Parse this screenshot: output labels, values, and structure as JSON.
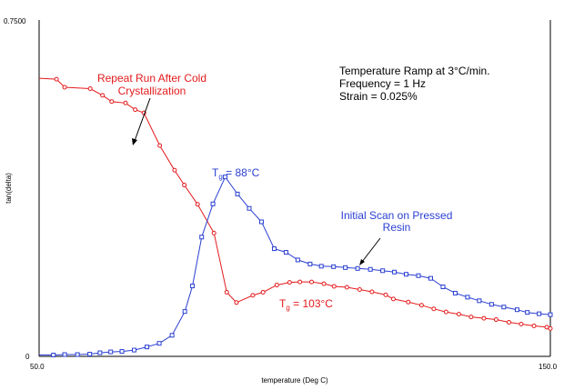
{
  "chart_data": {
    "type": "line",
    "title": "",
    "xlabel": "temperature (Deg C)",
    "ylabel": "tan(delta)",
    "xlim": [
      50.0,
      150.0
    ],
    "ylim": [
      0,
      0.75
    ],
    "x_tick_labels": [
      "50.0",
      "150.0"
    ],
    "y_tick_labels": [
      "0",
      "0.7500"
    ],
    "grid": false,
    "series": [
      {
        "name": "Repeat Run After Cold Crystallization",
        "color": "#e31a1c",
        "marker": "circle",
        "x": [
          48.0,
          53.4,
          55.0,
          60.0,
          62.4,
          64.2,
          66.9,
          68.8,
          70.5,
          73.6,
          76.5,
          78.4,
          81.0,
          84.2,
          86.7,
          88.6,
          91.8,
          93.8,
          96.5,
          99.0,
          101.0,
          103.3,
          105.7,
          107.7,
          110.2,
          112.7,
          115.1,
          117.8,
          119.3,
          122.2,
          124.8,
          127.2,
          129.6,
          132.1,
          134.5,
          137.0,
          139.4,
          141.9,
          144.3,
          146.8,
          149.3,
          150.0
        ],
        "y": [
          0.62,
          0.618,
          0.6,
          0.597,
          0.582,
          0.568,
          0.565,
          0.55,
          0.543,
          0.47,
          0.415,
          0.382,
          0.339,
          0.275,
          0.143,
          0.12,
          0.136,
          0.143,
          0.159,
          0.165,
          0.166,
          0.166,
          0.162,
          0.156,
          0.154,
          0.149,
          0.144,
          0.137,
          0.128,
          0.121,
          0.114,
          0.106,
          0.099,
          0.094,
          0.088,
          0.085,
          0.082,
          0.076,
          0.072,
          0.068,
          0.065,
          0.062
        ]
      },
      {
        "name": "Initial Scan on Pressed Resin",
        "color": "#2a3fd1",
        "marker": "square",
        "x": [
          48.0,
          52.8,
          55.0,
          57.5,
          59.9,
          61.9,
          64.0,
          66.2,
          68.6,
          71.1,
          73.5,
          76.0,
          78.5,
          80.0,
          81.8,
          84.0,
          86.4,
          88.8,
          91.1,
          93.5,
          96.0,
          98.3,
          100.6,
          103.0,
          105.2,
          107.6,
          109.9,
          112.3,
          114.8,
          117.2,
          119.5,
          121.8,
          124.2,
          126.6,
          129.0,
          131.4,
          133.8,
          136.1,
          138.5,
          140.9,
          143.5,
          145.5,
          147.8,
          150.0
        ],
        "y": [
          0.003,
          0.003,
          0.004,
          0.004,
          0.005,
          0.008,
          0.01,
          0.011,
          0.014,
          0.021,
          0.029,
          0.047,
          0.1,
          0.157,
          0.266,
          0.34,
          0.4,
          0.362,
          0.33,
          0.3,
          0.24,
          0.232,
          0.215,
          0.206,
          0.201,
          0.2,
          0.198,
          0.196,
          0.194,
          0.191,
          0.188,
          0.183,
          0.18,
          0.174,
          0.155,
          0.141,
          0.132,
          0.124,
          0.116,
          0.11,
          0.104,
          0.098,
          0.095,
          0.093
        ]
      }
    ],
    "annotations": {
      "repeat_label": [
        "Repeat Run After Cold",
        "Crystallization"
      ],
      "initial_label": [
        "Initial Scan on Pressed",
        "Resin"
      ],
      "info": [
        "Temperature Ramp at 3°C/min.",
        "Frequency = 1 Hz",
        "Strain = 0.025%"
      ],
      "tg_blue": {
        "prefix": "T",
        "sub": "g",
        "suffix": " = 88°C"
      },
      "tg_red": {
        "prefix": "T",
        "sub": "g",
        "suffix": " = 103°C"
      }
    }
  }
}
